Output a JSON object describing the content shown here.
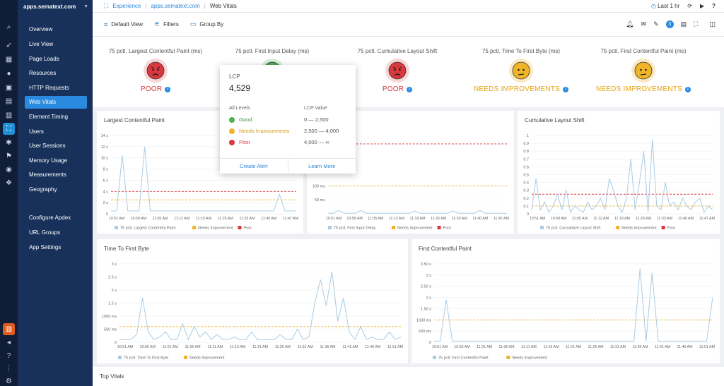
{
  "app": {
    "account": "apps.sematext.com"
  },
  "rail_icons": [
    "search-icon",
    "rocket-icon",
    "grid-icon",
    "alert-icon",
    "box-icon",
    "calendar-icon",
    "document-icon",
    "experience-icon",
    "bug-icon",
    "flag-icon",
    "globe-icon",
    "puzzle-icon"
  ],
  "rail_bottom_icons": [
    "gift-icon",
    "megaphone-icon",
    "help-icon",
    "share-icon",
    "settings-icon"
  ],
  "nav": {
    "items": [
      "Overview",
      "Live View",
      "Page Loads",
      "Resources",
      "HTTP Requests",
      "Web Vitals",
      "Element Timing",
      "Users",
      "User Sessions",
      "Memory Usage",
      "Measurements",
      "Geography"
    ],
    "active_index": 5,
    "settings_items": [
      "Configure Apdex",
      "URL Groups",
      "App Settings"
    ]
  },
  "breadcrumb": {
    "section": "Experience",
    "app": "apps.sematext.com",
    "page": "Web Vitals"
  },
  "time_range": "Last 1 hr",
  "toolbar": {
    "default_view": "Default View",
    "filters": "Filters",
    "group_by": "Group By",
    "notification_count": "3"
  },
  "vitals": [
    {
      "title": "75 pctl. Largest Contentful Paint (ms)",
      "status": "POOR",
      "level": "poor"
    },
    {
      "title": "75 pctl. First Input Delay (ms)",
      "status": "",
      "level": "good"
    },
    {
      "title": "75 pctl. Cumulative Layout Shift",
      "status": "POOR",
      "level": "poor"
    },
    {
      "title": "75 pctl. Time To First Byte (ms)",
      "status": "NEEDS IMPROVEMENTS",
      "level": "ni"
    },
    {
      "title": "75 pctl. First Contentful Paint (ms)",
      "status": "NEEDS IMPROVEMENTS",
      "level": "ni"
    }
  ],
  "tooltip": {
    "metric": "LCP",
    "value": "4,529",
    "levels_header": "All Levels",
    "value_header": "LCP Value",
    "levels": [
      {
        "name": "Good",
        "range": "0 — 2,500",
        "color": "#4caf50"
      },
      {
        "name": "Needs Improvements",
        "range": "2,500 — 4,000",
        "color": "#f0b429"
      },
      {
        "name": "Poor",
        "range": "4,000 — ∞",
        "color": "#d9393e"
      }
    ],
    "create_alert": "Create Alert",
    "learn_more": "Learn More"
  },
  "colors": {
    "series": "#a9cce3",
    "needs_improvement": "#f0b429",
    "poor": "#d9393e",
    "accent": "#2a8ae0"
  },
  "chart_data": [
    {
      "type": "line",
      "title": "Largest Contentful Paint",
      "yticks": [
        "0",
        "2 s",
        "4 s",
        "6 s",
        "8 s",
        "10 s",
        "12 s",
        "14 s"
      ],
      "ylim": [
        0,
        14
      ],
      "xticks": [
        "10:51 AM",
        "10:58 AM",
        "11:05 AM",
        "11:12 AM",
        "11:19 AM",
        "11:26 AM",
        "11:33 AM",
        "11:40 AM",
        "11:47 AM"
      ],
      "series": [
        {
          "name": "75 pctl. Largest Contentful Paint",
          "values": [
            0.5,
            0.5,
            10.5,
            0.5,
            0.5,
            0.5,
            12,
            0.5,
            0.5,
            0.5,
            0.5,
            0.5,
            0.5,
            0.5,
            0.5,
            0.5,
            0.5,
            0.5,
            0.5,
            0.5,
            0.5,
            0.5,
            0.5,
            0.5,
            0.5,
            0.5,
            0.5,
            0.5,
            0.5,
            0.5,
            3.5,
            0.5,
            0.5,
            0.5
          ]
        },
        {
          "name": "Needs Improvement",
          "values": [
            2.5
          ]
        },
        {
          "name": "Poor",
          "values": [
            4
          ]
        }
      ]
    },
    {
      "type": "line",
      "title": "",
      "yticks": [
        "50 ms",
        "100 ms"
      ],
      "ylim": [
        0,
        280
      ],
      "xticks": [
        "10:51 AM",
        "10:58 AM",
        "11:05 AM",
        "11:12 AM",
        "11:19 AM",
        "11:26 AM",
        "11:33 AM",
        "11:40 AM",
        "11:47 AM"
      ],
      "series": [
        {
          "name": "75 pctl. First Input Delay",
          "values": [
            2,
            2,
            12,
            2,
            2,
            2,
            12,
            2,
            2,
            2,
            2,
            2,
            2,
            2,
            2,
            2,
            10,
            2,
            2,
            2,
            2,
            2,
            2,
            10,
            2,
            2,
            2,
            2,
            12,
            2,
            2,
            2,
            2,
            2
          ]
        },
        {
          "name": "Needs Improvement",
          "values": [
            100
          ]
        },
        {
          "name": "Poor",
          "values": [
            250
          ]
        }
      ]
    },
    {
      "type": "line",
      "title": "Cumulative Layout Shift",
      "yticks": [
        "0",
        "0.1",
        "0.2",
        "0.3",
        "0.4",
        "0.5",
        "0.6",
        "0.7",
        "0.8",
        "0.9",
        "1"
      ],
      "ylim": [
        0,
        1
      ],
      "xticks": [
        "10:51 AM",
        "10:58 AM",
        "11:05 AM",
        "11:12 AM",
        "11:19 AM",
        "11:26 AM",
        "11:33 AM",
        "11:40 AM",
        "11:47 AM"
      ],
      "series": [
        {
          "name": "75 pctl. Cumulative Layout Shift",
          "values": [
            0.05,
            0.45,
            0.05,
            0.15,
            0.02,
            0.1,
            0.25,
            0.05,
            0.3,
            0.02,
            0.1,
            0.05,
            0.02,
            0.15,
            0.05,
            0.1,
            0.2,
            0.05,
            0.45,
            0.3,
            0.1,
            0.02,
            0.2,
            0.7,
            0.05,
            0.4,
            0.8,
            0.02,
            0.95,
            0.1,
            0.05,
            0.4,
            0.1,
            0.15,
            0.05,
            0.2,
            0.1,
            0.05,
            0.15,
            0.2,
            0.02,
            0.1,
            0.05
          ]
        },
        {
          "name": "Needs Improvement",
          "values": [
            0.1
          ]
        },
        {
          "name": "Poor",
          "values": [
            0.25
          ]
        }
      ]
    },
    {
      "type": "line",
      "title": "Time To First Byte",
      "yticks": [
        "0",
        "500 ms",
        "1000 ms",
        "1.5 s",
        "2 s",
        "2.5 s",
        "3 s"
      ],
      "ylim": [
        0,
        3
      ],
      "xticks": [
        "10:51 AM",
        "10:56 AM",
        "11:01 AM",
        "11:06 AM",
        "11:11 AM",
        "11:16 AM",
        "11:21 AM",
        "11:26 AM",
        "11:31 AM",
        "11:36 AM",
        "11:41 AM",
        "11:46 AM",
        "11:51 AM"
      ],
      "series": [
        {
          "name": "75 pctl. Time To First Byte",
          "values": [
            0.1,
            0.1,
            0.1,
            0.3,
            1.7,
            0.4,
            0.1,
            0.2,
            0.4,
            0.1,
            0.1,
            0.7,
            0.1,
            0.6,
            0.2,
            0.4,
            0.1,
            0.3,
            0.1,
            0.1,
            0.2,
            0.1,
            0.1,
            0.4,
            0.1,
            0.1,
            0.1,
            0.1,
            0.3,
            0.1,
            0.1,
            0.5,
            0.1,
            0.2,
            1.5,
            2.4,
            1.4,
            2.7,
            0.8,
            1.7,
            0.4,
            0.1,
            0.6,
            0.1,
            0.2,
            0.1,
            0.1,
            0.4,
            0.1,
            0.2
          ]
        },
        {
          "name": "Needs Improvement",
          "values": [
            0.6
          ]
        }
      ]
    },
    {
      "type": "line",
      "title": "First Contentful Paint",
      "yticks": [
        "0",
        "500 ms",
        "1000 ms",
        "1.50 s",
        "2 s",
        "2.50 s",
        "3 s",
        "3.50 s"
      ],
      "ylim": [
        0,
        3.5
      ],
      "xticks": [
        "10:51 AM",
        "10:56 AM",
        "11:01 AM",
        "11:06 AM",
        "11:11 AM",
        "11:16 AM",
        "11:21 AM",
        "11:26 AM",
        "11:31 AM",
        "11:36 AM",
        "11:41 AM",
        "11:46 AM",
        "11:51 AM"
      ],
      "series": [
        {
          "name": "75 pctl. First Contentful Paint",
          "values": [
            0.05,
            0.05,
            1.9,
            0.05,
            0.05,
            0.05,
            0.05,
            0.05,
            0.05,
            0.05,
            0.05,
            0.05,
            0.05,
            0.05,
            0.05,
            0.05,
            0.05,
            0.05,
            0.05,
            0.05,
            0.05,
            0.05,
            0.05,
            0.05,
            0.05,
            0.05,
            0.05,
            0.05,
            0.05,
            0.05,
            0.05,
            0.05,
            0.05,
            0.05,
            3.3,
            0.05,
            3.1,
            0.05,
            0.05,
            0.05,
            0.05,
            0.05,
            0.05,
            0.05,
            0.05,
            0.05,
            2.0
          ]
        },
        {
          "name": "Needs Improvement",
          "values": [
            1.0
          ]
        }
      ]
    }
  ],
  "top_vitals": {
    "title": "Top Vitals"
  }
}
